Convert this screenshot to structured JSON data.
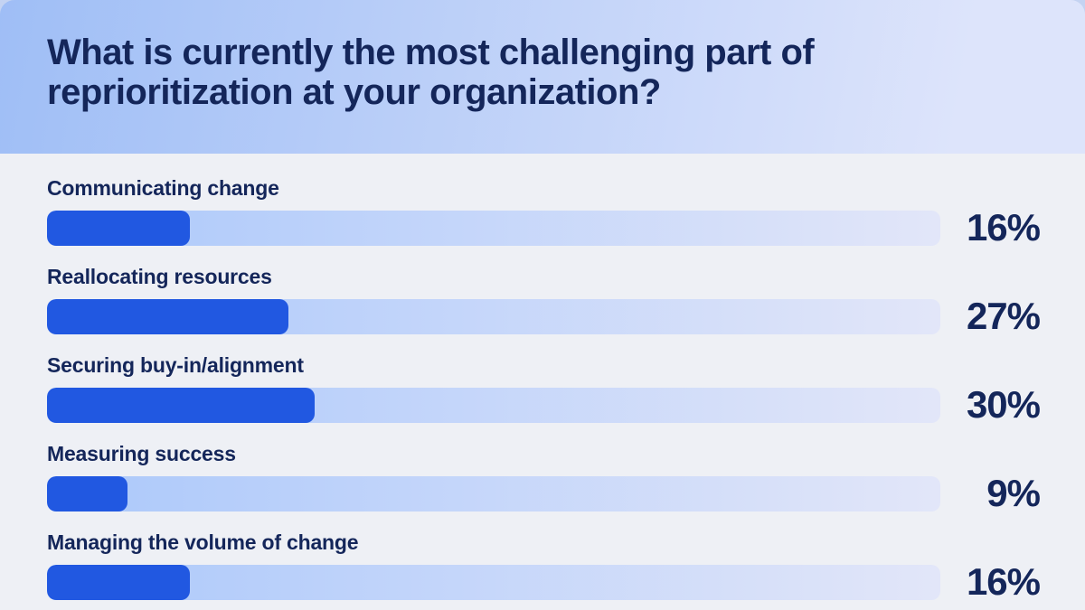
{
  "page": {
    "background": "#eef0f5",
    "header_outer": "#c4d3f2"
  },
  "header": {
    "title": "What is currently the most challenging part of reprioritization at your organization?",
    "gradient_start": "#9fbef6",
    "gradient_end": "#dde4fb",
    "text_color": "#14265a"
  },
  "chart_data": {
    "type": "bar",
    "orientation": "horizontal",
    "title": "What is currently the most challenging part of reprioritization at your organization?",
    "categories": [
      "Communicating change",
      "Reallocating resources",
      "Securing buy-in/alignment",
      "Measuring success",
      "Managing the volume of change"
    ],
    "values": [
      16,
      27,
      30,
      9,
      16
    ],
    "value_labels": [
      "16%",
      "27%",
      "30%",
      "9%",
      "16%"
    ],
    "unit": "%",
    "xlim": [
      0,
      100
    ],
    "grid": false,
    "legend": "none",
    "bar_fill_color": "#2158e1",
    "track_gradient_start": "#abc8fa",
    "track_gradient_end": "#e2e6f9",
    "value_text_color": "#14265a"
  }
}
